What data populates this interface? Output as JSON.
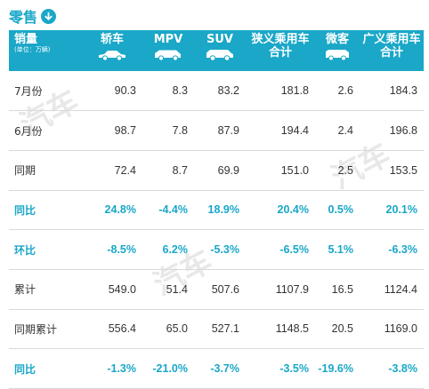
{
  "title": {
    "text": "零售",
    "icon": "arrow-down-circle-icon"
  },
  "watermark": "汽车",
  "colors": {
    "accent": "#1aa7c8",
    "header_text": "#ffffff",
    "body_text": "#333333"
  },
  "header": {
    "row_label": "销量",
    "unit": "(单位：万辆)",
    "columns": [
      {
        "label": "轿车",
        "icon": "sedan-icon"
      },
      {
        "label": "MPV",
        "icon": "mpv-icon"
      },
      {
        "label": "SUV",
        "icon": "suv-icon"
      },
      {
        "label": "狭义乘用车合计",
        "icon": ""
      },
      {
        "label": "微客",
        "icon": "minivan-icon"
      },
      {
        "label": "广义乘用车合计",
        "icon": ""
      }
    ]
  },
  "rows": [
    {
      "label": "7月份",
      "highlight": false,
      "values": [
        "90.3",
        "8.3",
        "83.2",
        "181.8",
        "2.6",
        "184.3"
      ]
    },
    {
      "label": "6月份",
      "highlight": false,
      "values": [
        "98.7",
        "7.8",
        "87.9",
        "194.4",
        "2.4",
        "196.8"
      ]
    },
    {
      "label": "同期",
      "highlight": false,
      "values": [
        "72.4",
        "8.7",
        "69.9",
        "151.0",
        "2.5",
        "153.5"
      ]
    },
    {
      "label": "同比",
      "highlight": true,
      "values": [
        "24.8%",
        "-4.4%",
        "18.9%",
        "20.4%",
        "0.5%",
        "20.1%"
      ]
    },
    {
      "label": "环比",
      "highlight": true,
      "values": [
        "-8.5%",
        "6.2%",
        "-5.3%",
        "-6.5%",
        "5.1%",
        "-6.3%"
      ]
    },
    {
      "label": "累计",
      "highlight": false,
      "values": [
        "549.0",
        "51.4",
        "507.6",
        "1107.9",
        "16.5",
        "1124.4"
      ]
    },
    {
      "label": "同期累计",
      "highlight": false,
      "values": [
        "556.4",
        "65.0",
        "527.1",
        "1148.5",
        "20.5",
        "1169.0"
      ]
    },
    {
      "label": "同比",
      "highlight": true,
      "values": [
        "-1.3%",
        "-21.0%",
        "-3.7%",
        "-3.5%",
        "-19.6%",
        "-3.8%"
      ]
    }
  ]
}
